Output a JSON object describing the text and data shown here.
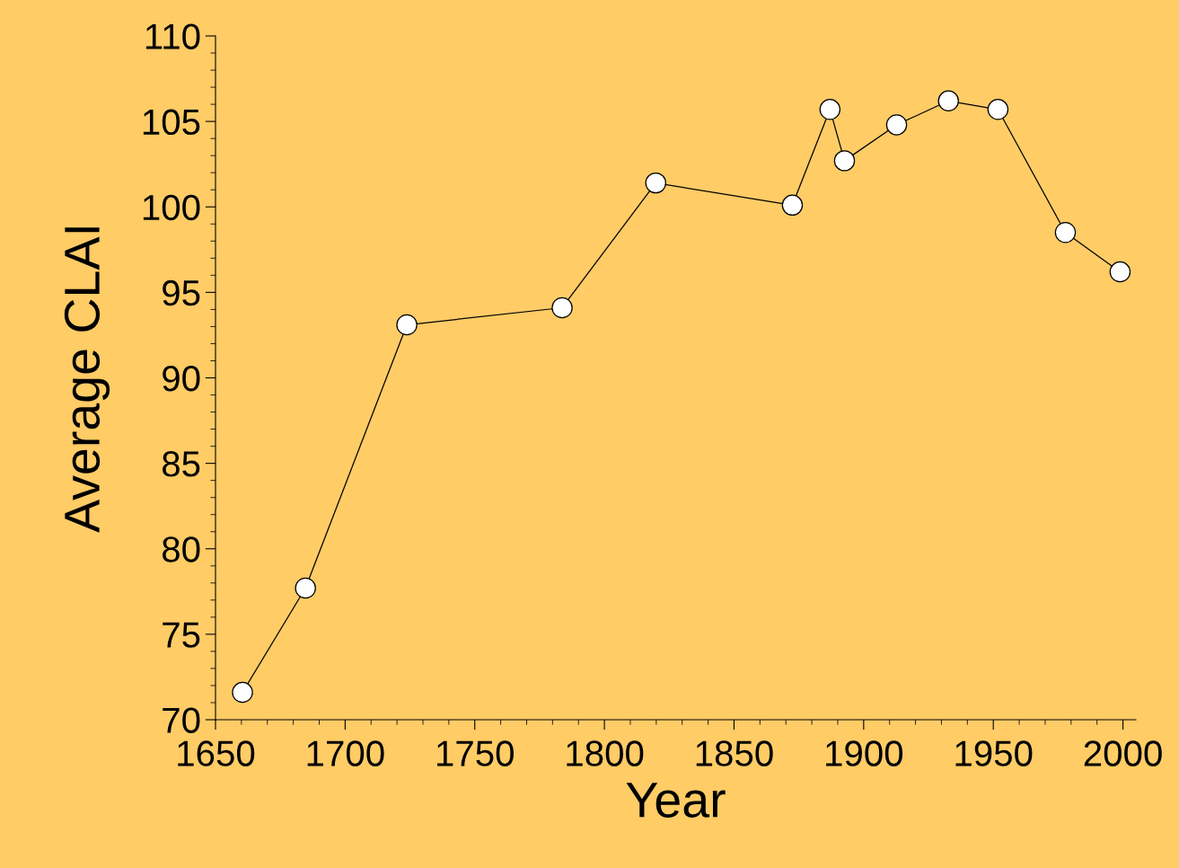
{
  "chart_data": {
    "type": "line",
    "xlabel": "Year",
    "ylabel": "Average CLAI",
    "x": [
      1660.4,
      1684.7,
      1723.8,
      1783.7,
      1819.8,
      1872.5,
      1887,
      1892.6,
      1912.7,
      1932.7,
      1951.8,
      1977.8,
      1998.9
    ],
    "series": [
      {
        "color": "#000000",
        "values": [
          71.6,
          77.7,
          93.1,
          94.1,
          101.4,
          100.1,
          105.7,
          102.7,
          104.8,
          106.2,
          105.7,
          98.5,
          96.2
        ]
      }
    ],
    "xlim": [
      1650,
      2005
    ],
    "xticks": [
      1650,
      1700,
      1750,
      1800,
      1850,
      1900,
      1950,
      2000
    ],
    "ylim": [
      70,
      110
    ],
    "yticks": [
      70,
      75,
      80,
      85,
      90,
      95,
      100,
      105,
      110
    ],
    "marker": "circle",
    "line_style": "solid",
    "grid": false
  }
}
